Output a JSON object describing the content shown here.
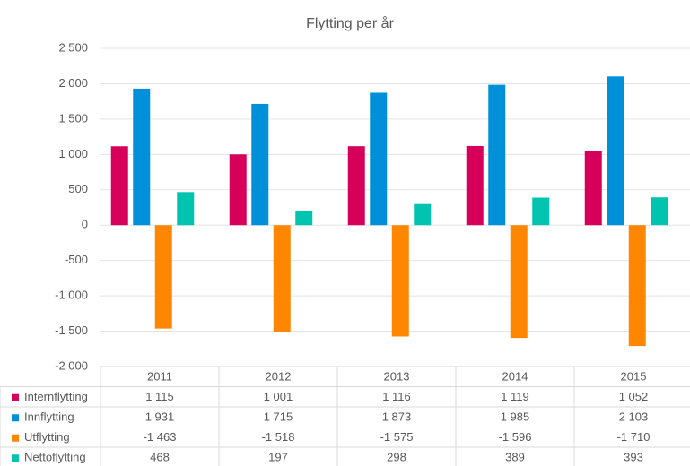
{
  "chart_data": {
    "type": "bar",
    "title": "Flytting per år",
    "categories": [
      "2011",
      "2012",
      "2013",
      "2014",
      "2015"
    ],
    "series": [
      {
        "name": "Internflytting",
        "color": "#d6005b",
        "values": [
          1115,
          1001,
          1116,
          1119,
          1052
        ],
        "value_labels": [
          "1 115",
          "1 001",
          "1 116",
          "1 119",
          "1 052"
        ]
      },
      {
        "name": "Innflytting",
        "color": "#0090d9",
        "values": [
          1931,
          1715,
          1873,
          1985,
          2103
        ],
        "value_labels": [
          "1 931",
          "1 715",
          "1 873",
          "1 985",
          "2 103"
        ]
      },
      {
        "name": "Utflytting",
        "color": "#ff8600",
        "values": [
          -1463,
          -1518,
          -1575,
          -1596,
          -1710
        ],
        "value_labels": [
          "-1 463",
          "-1 518",
          "-1 575",
          "-1 596",
          "-1 710"
        ]
      },
      {
        "name": "Nettoflytting",
        "color": "#00c4b0",
        "values": [
          468,
          197,
          298,
          389,
          393
        ]
      }
    ],
    "ylim": [
      -2000,
      2500
    ],
    "yticks": [
      {
        "value": -2000,
        "label": "-2 000"
      },
      {
        "value": -1500,
        "label": "-1 500"
      },
      {
        "value": -1000,
        "label": "-1 000"
      },
      -500,
      0,
      500,
      {
        "value": 1000,
        "label": "1 000"
      },
      {
        "value": 1500,
        "label": "1 500"
      },
      {
        "value": 2000,
        "label": "2 000"
      },
      {
        "value": 2500,
        "label": "2 500"
      }
    ],
    "grid": true
  }
}
